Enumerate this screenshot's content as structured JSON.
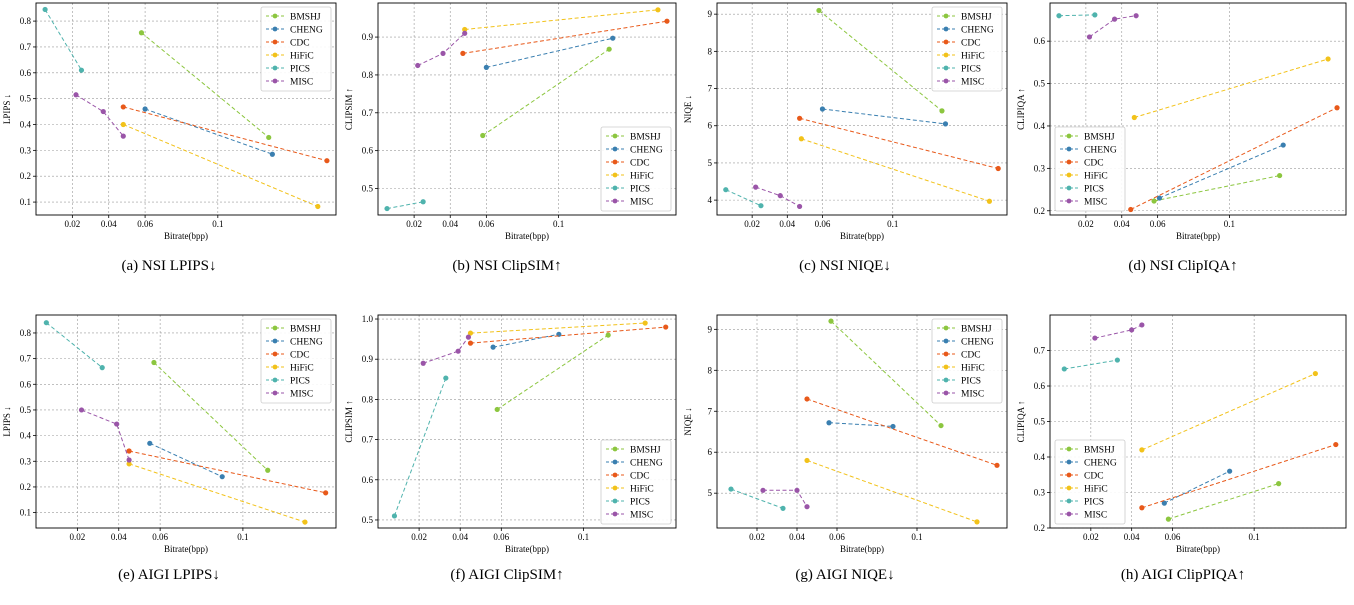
{
  "colors": {
    "BMSHJ": "#8cc63f",
    "CHENG": "#3a7fb0",
    "CDC": "#e8591a",
    "HiFiC": "#f2c21a",
    "PICS": "#4fb3ad",
    "MISC": "#9a55a8"
  },
  "chart_data": [
    {
      "type": "line",
      "caption": "(a) NSI LPIPS↓",
      "xlabel": "Bitrate(bpp)",
      "ylabel": "LPIPS ↓",
      "xlim": [
        0.0,
        0.165
      ],
      "ylim": [
        0.05,
        0.87
      ],
      "xticks": [
        {
          "v": 0.02,
          "label": "0.02"
        },
        {
          "v": 0.04,
          "label": "0.04"
        },
        {
          "v": 0.06,
          "label": "0.06"
        },
        {
          "v": 0.1,
          "label": "0.1"
        }
      ],
      "yticks": [
        {
          "v": 0.1,
          "label": "0.1"
        },
        {
          "v": 0.2,
          "label": "0.2"
        },
        {
          "v": 0.3,
          "label": "0.3"
        },
        {
          "v": 0.4,
          "label": "0.4"
        },
        {
          "v": 0.5,
          "label": "0.5"
        },
        {
          "v": 0.6,
          "label": "0.6"
        },
        {
          "v": 0.7,
          "label": "0.7"
        },
        {
          "v": 0.8,
          "label": "0.8"
        }
      ],
      "legend": "top-right",
      "series": [
        {
          "name": "BMSHJ",
          "x": [
            0.058,
            0.128
          ],
          "y": [
            0.755,
            0.35
          ]
        },
        {
          "name": "CHENG",
          "x": [
            0.06,
            0.13
          ],
          "y": [
            0.46,
            0.285
          ]
        },
        {
          "name": "CDC",
          "x": [
            0.048,
            0.16
          ],
          "y": [
            0.468,
            0.26
          ]
        },
        {
          "name": "HiFiC",
          "x": [
            0.048,
            0.155
          ],
          "y": [
            0.4,
            0.083
          ]
        },
        {
          "name": "PICS",
          "x": [
            0.005,
            0.025
          ],
          "y": [
            0.845,
            0.61
          ]
        },
        {
          "name": "MISC",
          "x": [
            0.022,
            0.037,
            0.048
          ],
          "y": [
            0.515,
            0.45,
            0.355
          ]
        }
      ]
    },
    {
      "type": "line",
      "caption": "(b) NSI ClipSIM↑",
      "xlabel": "Bitrate(bpp)",
      "ylabel": "CLIPSIM ↑",
      "xlim": [
        0.0,
        0.165
      ],
      "ylim": [
        0.43,
        0.99
      ],
      "xticks": [
        {
          "v": 0.02,
          "label": "0.02"
        },
        {
          "v": 0.04,
          "label": "0.04"
        },
        {
          "v": 0.06,
          "label": "0.06"
        },
        {
          "v": 0.1,
          "label": "0.1"
        }
      ],
      "yticks": [
        {
          "v": 0.5,
          "label": "0.5"
        },
        {
          "v": 0.6,
          "label": "0.6"
        },
        {
          "v": 0.7,
          "label": "0.7"
        },
        {
          "v": 0.8,
          "label": "0.8"
        },
        {
          "v": 0.9,
          "label": "0.9"
        }
      ],
      "legend": "bottom-right",
      "series": [
        {
          "name": "BMSHJ",
          "x": [
            0.058,
            0.128
          ],
          "y": [
            0.64,
            0.868
          ]
        },
        {
          "name": "CHENG",
          "x": [
            0.06,
            0.13
          ],
          "y": [
            0.82,
            0.897
          ]
        },
        {
          "name": "CDC",
          "x": [
            0.047,
            0.16
          ],
          "y": [
            0.857,
            0.942
          ]
        },
        {
          "name": "HiFiC",
          "x": [
            0.048,
            0.155
          ],
          "y": [
            0.92,
            0.972
          ]
        },
        {
          "name": "PICS",
          "x": [
            0.005,
            0.025
          ],
          "y": [
            0.447,
            0.465
          ]
        },
        {
          "name": "MISC",
          "x": [
            0.022,
            0.036,
            0.048
          ],
          "y": [
            0.825,
            0.857,
            0.91
          ]
        }
      ]
    },
    {
      "type": "line",
      "caption": "(c) NSI NIQE↓",
      "xlabel": "Bitrate(bpp)",
      "ylabel": "NIQE ↓",
      "xlim": [
        0.0,
        0.165
      ],
      "ylim": [
        3.6,
        9.3
      ],
      "xticks": [
        {
          "v": 0.02,
          "label": "0.02"
        },
        {
          "v": 0.04,
          "label": "0.04"
        },
        {
          "v": 0.06,
          "label": "0.06"
        },
        {
          "v": 0.1,
          "label": "0.1"
        }
      ],
      "yticks": [
        {
          "v": 4,
          "label": "4"
        },
        {
          "v": 5,
          "label": "5"
        },
        {
          "v": 6,
          "label": "6"
        },
        {
          "v": 7,
          "label": "7"
        },
        {
          "v": 8,
          "label": "8"
        },
        {
          "v": 9,
          "label": "9"
        }
      ],
      "legend": "top-right",
      "series": [
        {
          "name": "BMSHJ",
          "x": [
            0.058,
            0.128
          ],
          "y": [
            9.1,
            6.4
          ]
        },
        {
          "name": "CHENG",
          "x": [
            0.06,
            0.13
          ],
          "y": [
            6.45,
            6.05
          ]
        },
        {
          "name": "CDC",
          "x": [
            0.047,
            0.16
          ],
          "y": [
            6.2,
            4.85
          ]
        },
        {
          "name": "HiFiC",
          "x": [
            0.048,
            0.155
          ],
          "y": [
            5.65,
            3.97
          ]
        },
        {
          "name": "PICS",
          "x": [
            0.005,
            0.025
          ],
          "y": [
            4.28,
            3.85
          ]
        },
        {
          "name": "MISC",
          "x": [
            0.022,
            0.036,
            0.047
          ],
          "y": [
            4.35,
            4.12,
            3.83
          ]
        }
      ]
    },
    {
      "type": "line",
      "caption": "(d) NSI ClipIQA↑",
      "xlabel": "Bitrate(bpp)",
      "ylabel": "CLIPIQA ↑",
      "xlim": [
        0.0,
        0.165
      ],
      "ylim": [
        0.19,
        0.69
      ],
      "xticks": [
        {
          "v": 0.02,
          "label": "0.02"
        },
        {
          "v": 0.04,
          "label": "0.04"
        },
        {
          "v": 0.06,
          "label": "0.06"
        },
        {
          "v": 0.1,
          "label": "0.1"
        }
      ],
      "yticks": [
        {
          "v": 0.2,
          "label": "0.2"
        },
        {
          "v": 0.3,
          "label": "0.3"
        },
        {
          "v": 0.4,
          "label": "0.4"
        },
        {
          "v": 0.5,
          "label": "0.5"
        },
        {
          "v": 0.6,
          "label": "0.6"
        }
      ],
      "legend": "bottom-left",
      "series": [
        {
          "name": "BMSHJ",
          "x": [
            0.058,
            0.128
          ],
          "y": [
            0.223,
            0.283
          ]
        },
        {
          "name": "CHENG",
          "x": [
            0.061,
            0.13
          ],
          "y": [
            0.23,
            0.355
          ]
        },
        {
          "name": "CDC",
          "x": [
            0.045,
            0.16
          ],
          "y": [
            0.203,
            0.443
          ]
        },
        {
          "name": "HiFiC",
          "x": [
            0.047,
            0.155
          ],
          "y": [
            0.42,
            0.558
          ]
        },
        {
          "name": "PICS",
          "x": [
            0.005,
            0.025
          ],
          "y": [
            0.66,
            0.662
          ]
        },
        {
          "name": "MISC",
          "x": [
            0.022,
            0.036,
            0.048
          ],
          "y": [
            0.61,
            0.652,
            0.66
          ]
        }
      ]
    },
    {
      "type": "line",
      "caption": "(e) AIGI LPIPS↓",
      "xlabel": "Bitrate(bpp)",
      "ylabel": "LPIPS ↓",
      "xlim": [
        0.0,
        0.145
      ],
      "ylim": [
        0.04,
        0.87
      ],
      "xticks": [
        {
          "v": 0.02,
          "label": "0.02"
        },
        {
          "v": 0.04,
          "label": "0.04"
        },
        {
          "v": 0.06,
          "label": "0.06"
        },
        {
          "v": 0.1,
          "label": "0.1"
        }
      ],
      "yticks": [
        {
          "v": 0.1,
          "label": "0.1"
        },
        {
          "v": 0.2,
          "label": "0.2"
        },
        {
          "v": 0.3,
          "label": "0.3"
        },
        {
          "v": 0.4,
          "label": "0.4"
        },
        {
          "v": 0.5,
          "label": "0.5"
        },
        {
          "v": 0.6,
          "label": "0.6"
        },
        {
          "v": 0.7,
          "label": "0.7"
        },
        {
          "v": 0.8,
          "label": "0.8"
        }
      ],
      "legend": "top-right",
      "series": [
        {
          "name": "BMSHJ",
          "x": [
            0.057,
            0.112
          ],
          "y": [
            0.685,
            0.265
          ]
        },
        {
          "name": "CHENG",
          "x": [
            0.055,
            0.09
          ],
          "y": [
            0.37,
            0.24
          ]
        },
        {
          "name": "CDC",
          "x": [
            0.045,
            0.14
          ],
          "y": [
            0.34,
            0.177
          ]
        },
        {
          "name": "HiFiC",
          "x": [
            0.045,
            0.13
          ],
          "y": [
            0.29,
            0.063
          ]
        },
        {
          "name": "PICS",
          "x": [
            0.005,
            0.032
          ],
          "y": [
            0.84,
            0.665
          ]
        },
        {
          "name": "MISC",
          "x": [
            0.022,
            0.039,
            0.045
          ],
          "y": [
            0.5,
            0.445,
            0.305
          ]
        }
      ]
    },
    {
      "type": "line",
      "caption": "(f) AIGI ClipSIM↑",
      "xlabel": "Bitrate(bpp)",
      "ylabel": "CLIPSIM ↑",
      "xlim": [
        0.0,
        0.145
      ],
      "ylim": [
        0.48,
        1.01
      ],
      "xticks": [
        {
          "v": 0.02,
          "label": "0.02"
        },
        {
          "v": 0.04,
          "label": "0.04"
        },
        {
          "v": 0.06,
          "label": "0.06"
        },
        {
          "v": 0.1,
          "label": "0.1"
        }
      ],
      "yticks": [
        {
          "v": 0.5,
          "label": "0.5"
        },
        {
          "v": 0.6,
          "label": "0.6"
        },
        {
          "v": 0.7,
          "label": "0.7"
        },
        {
          "v": 0.8,
          "label": "0.8"
        },
        {
          "v": 0.9,
          "label": "0.9"
        },
        {
          "v": 1.0,
          "label": "1.0"
        }
      ],
      "legend": "bottom-right",
      "series": [
        {
          "name": "BMSHJ",
          "x": [
            0.058,
            0.112
          ],
          "y": [
            0.775,
            0.96
          ]
        },
        {
          "name": "CHENG",
          "x": [
            0.056,
            0.088
          ],
          "y": [
            0.93,
            0.962
          ]
        },
        {
          "name": "CDC",
          "x": [
            0.045,
            0.14
          ],
          "y": [
            0.94,
            0.98
          ]
        },
        {
          "name": "HiFiC",
          "x": [
            0.045,
            0.13
          ],
          "y": [
            0.965,
            0.99
          ]
        },
        {
          "name": "PICS",
          "x": [
            0.008,
            0.033
          ],
          "y": [
            0.51,
            0.853
          ]
        },
        {
          "name": "MISC",
          "x": [
            0.022,
            0.039,
            0.044
          ],
          "y": [
            0.89,
            0.92,
            0.955
          ]
        }
      ]
    },
    {
      "type": "line",
      "caption": "(g) AIGI NIQE↓",
      "xlabel": "Bitrate(bpp)",
      "ylabel": "NIQE ↓",
      "xlim": [
        0.0,
        0.145
      ],
      "ylim": [
        4.15,
        9.35
      ],
      "xticks": [
        {
          "v": 0.02,
          "label": "0.02"
        },
        {
          "v": 0.04,
          "label": "0.04"
        },
        {
          "v": 0.06,
          "label": "0.06"
        },
        {
          "v": 0.1,
          "label": "0.1"
        }
      ],
      "yticks": [
        {
          "v": 5,
          "label": "5"
        },
        {
          "v": 6,
          "label": "6"
        },
        {
          "v": 7,
          "label": "7"
        },
        {
          "v": 8,
          "label": "8"
        },
        {
          "v": 9,
          "label": "9"
        }
      ],
      "legend": "top-right",
      "series": [
        {
          "name": "BMSHJ",
          "x": [
            0.057,
            0.112
          ],
          "y": [
            9.2,
            6.65
          ]
        },
        {
          "name": "CHENG",
          "x": [
            0.056,
            0.088
          ],
          "y": [
            6.72,
            6.63
          ]
        },
        {
          "name": "CDC",
          "x": [
            0.045,
            0.14
          ],
          "y": [
            7.3,
            5.68
          ]
        },
        {
          "name": "HiFiC",
          "x": [
            0.045,
            0.13
          ],
          "y": [
            5.8,
            4.3
          ]
        },
        {
          "name": "PICS",
          "x": [
            0.007,
            0.033
          ],
          "y": [
            5.1,
            4.63
          ]
        },
        {
          "name": "MISC",
          "x": [
            0.023,
            0.04,
            0.045
          ],
          "y": [
            5.07,
            5.07,
            4.67
          ]
        }
      ]
    },
    {
      "type": "line",
      "caption": "(h) AIGI ClipPIQA↑",
      "xlabel": "Bitrate(bpp)",
      "ylabel": "CLIPIQA ↑",
      "xlim": [
        0.0,
        0.145
      ],
      "ylim": [
        0.2,
        0.8
      ],
      "xticks": [
        {
          "v": 0.02,
          "label": "0.02"
        },
        {
          "v": 0.04,
          "label": "0.04"
        },
        {
          "v": 0.06,
          "label": "0.06"
        },
        {
          "v": 0.1,
          "label": "0.1"
        }
      ],
      "yticks": [
        {
          "v": 0.2,
          "label": "0.2"
        },
        {
          "v": 0.3,
          "label": "0.3"
        },
        {
          "v": 0.4,
          "label": "0.4"
        },
        {
          "v": 0.5,
          "label": "0.5"
        },
        {
          "v": 0.6,
          "label": "0.6"
        },
        {
          "v": 0.7,
          "label": "0.7"
        }
      ],
      "legend": "bottom-left",
      "series": [
        {
          "name": "BMSHJ",
          "x": [
            0.058,
            0.112
          ],
          "y": [
            0.225,
            0.325
          ]
        },
        {
          "name": "CHENG",
          "x": [
            0.056,
            0.088
          ],
          "y": [
            0.27,
            0.36
          ]
        },
        {
          "name": "CDC",
          "x": [
            0.045,
            0.14
          ],
          "y": [
            0.257,
            0.435
          ]
        },
        {
          "name": "HiFiC",
          "x": [
            0.045,
            0.13
          ],
          "y": [
            0.42,
            0.635
          ]
        },
        {
          "name": "PICS",
          "x": [
            0.007,
            0.033
          ],
          "y": [
            0.648,
            0.673
          ]
        },
        {
          "name": "MISC",
          "x": [
            0.022,
            0.04,
            0.045
          ],
          "y": [
            0.735,
            0.758,
            0.772
          ]
        }
      ]
    }
  ]
}
